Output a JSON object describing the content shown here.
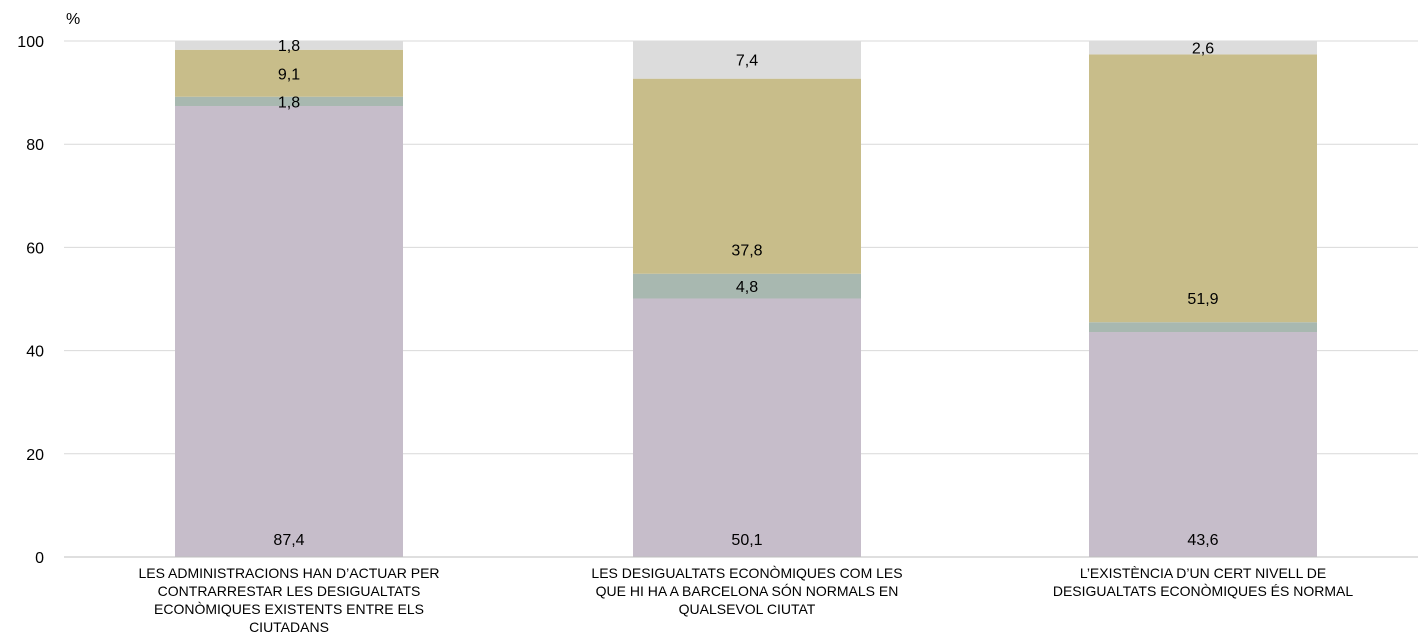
{
  "chart_data": {
    "type": "bar",
    "stacked": true,
    "y_unit_label": "%",
    "ylim": [
      0,
      100
    ],
    "yticks": [
      0,
      20,
      40,
      60,
      80,
      100
    ],
    "grid": true,
    "categories": [
      [
        "LES ADMINISTRACIONS HAN D’ACTUAR PER",
        "CONTRARRESTAR LES DESIGUALTATS",
        "ECONÒMIQUES EXISTENTS ENTRE ELS",
        "CIUTADANS"
      ],
      [
        "LES DESIGUALTATS ECONÒMIQUES COM LES",
        "QUE HI HA A BARCELONA SÓN NORMALS EN",
        "QUALSEVOL CIUTAT"
      ],
      [
        "L’EXISTÈNCIA D’UN CERT NIVELL DE",
        "DESIGUALTATS ECONÒMIQUES ÉS NORMAL"
      ]
    ],
    "series": [
      {
        "color": "#c6bdca",
        "values": [
          87.4,
          50.1,
          43.6
        ],
        "labels": [
          "87,4",
          "50,1",
          "43,6"
        ]
      },
      {
        "color": "#a8b8b0",
        "values": [
          1.8,
          4.8,
          1.9
        ],
        "labels": [
          "1,8",
          "4,8",
          ""
        ]
      },
      {
        "color": "#c8bd8a",
        "values": [
          9.1,
          37.8,
          51.9
        ],
        "labels": [
          "9,1",
          "37,8",
          "51,9"
        ]
      },
      {
        "color": "#dcdcdc",
        "values": [
          1.8,
          7.4,
          2.6
        ],
        "labels": [
          "1,8",
          "7,4",
          "2,6"
        ]
      }
    ]
  }
}
